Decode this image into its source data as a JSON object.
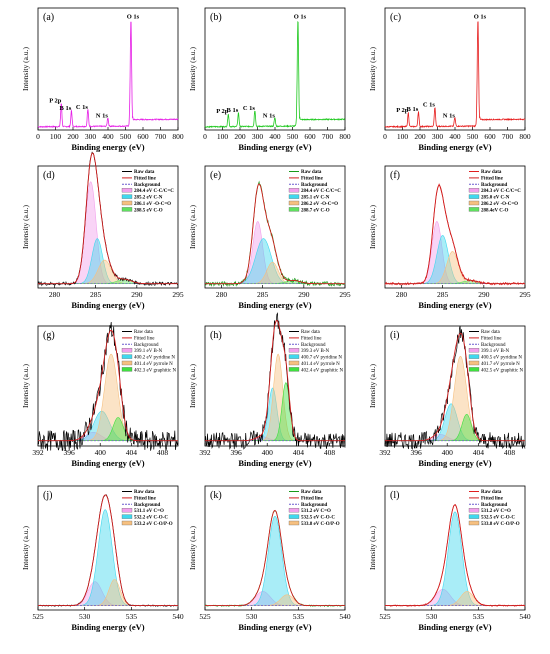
{
  "figure": {
    "xlabel": "Binding energy (eV)",
    "ylabel": "Intensity (a.u.)",
    "legend_raw": "Raw data",
    "legend_fit": "Fitted line",
    "legend_bg": "Background"
  },
  "chart_data": [
    {
      "id": "a",
      "type": "line",
      "label": "(a)",
      "color": "#e61ee6",
      "xlim": [
        0,
        800
      ],
      "xticks": [
        0,
        100,
        200,
        300,
        400,
        500,
        600,
        700,
        800
      ],
      "peaks": [
        {
          "label": "P 2p",
          "x": 133,
          "h": 0.22
        },
        {
          "label": "B 1s",
          "x": 191,
          "h": 0.15
        },
        {
          "label": "C 1s",
          "x": 285,
          "h": 0.16
        },
        {
          "label": "N 1s",
          "x": 399,
          "h": 0.08
        },
        {
          "label": "O 1s",
          "x": 531,
          "h": 1.0
        }
      ]
    },
    {
      "id": "b",
      "type": "line",
      "label": "(b)",
      "color": "#1ec81e",
      "xlim": [
        0,
        800
      ],
      "xticks": [
        0,
        100,
        200,
        300,
        400,
        500,
        600,
        700,
        800
      ],
      "peaks": [
        {
          "label": "P 2p",
          "x": 133,
          "h": 0.12
        },
        {
          "label": "B 1s",
          "x": 191,
          "h": 0.13
        },
        {
          "label": "C 1s",
          "x": 285,
          "h": 0.15
        },
        {
          "label": "N 1s",
          "x": 399,
          "h": 0.08
        },
        {
          "label": "O 1s",
          "x": 531,
          "h": 1.0
        }
      ]
    },
    {
      "id": "c",
      "type": "line",
      "label": "(c)",
      "color": "#e61e1e",
      "xlim": [
        0,
        800
      ],
      "xticks": [
        0,
        100,
        200,
        300,
        400,
        500,
        600,
        700,
        800
      ],
      "peaks": [
        {
          "label": "P 2p",
          "x": 133,
          "h": 0.13
        },
        {
          "label": "B 1s",
          "x": 191,
          "h": 0.14
        },
        {
          "label": "C 1s",
          "x": 285,
          "h": 0.18
        },
        {
          "label": "N 1s",
          "x": 399,
          "h": 0.08
        },
        {
          "label": "O 1s",
          "x": 531,
          "h": 1.0
        }
      ]
    },
    {
      "id": "d",
      "type": "line",
      "label": "(d)",
      "xlim": [
        278,
        295
      ],
      "xticks": [
        280,
        285,
        290,
        295
      ],
      "raw_color": "#000000",
      "noise": 0.015,
      "baseline": 0.04,
      "legend": [
        "Raw data",
        "Fitted line",
        "Background",
        "284.4 eV  C-C/C=C",
        "285.2 eV  C-N",
        "286.1 eV  -O-C=O",
        "288.5 eV  C-O"
      ],
      "components": [
        {
          "c": 284.4,
          "a": 0.95,
          "w": 0.65,
          "color": "#f2a0ec"
        },
        {
          "c": 285.2,
          "a": 0.42,
          "w": 0.65,
          "color": "#40d8ee"
        },
        {
          "c": 286.1,
          "a": 0.22,
          "w": 0.8,
          "color": "#f6c080"
        },
        {
          "c": 288.5,
          "a": 0.04,
          "w": 0.9,
          "color": "#60e060"
        }
      ]
    },
    {
      "id": "e",
      "type": "line",
      "label": "(e)",
      "xlim": [
        278,
        295
      ],
      "xticks": [
        280,
        285,
        290,
        295
      ],
      "raw_color": "#1a9a1a",
      "noise": 0.02,
      "baseline": 0.04,
      "legend": [
        "Raw data",
        "Fitted line",
        "Background",
        "284.4 eV  C-C/C=C",
        "285.1 eV  C-N",
        "286.2 eV  -O-C=O",
        "288.7 eV  C-O"
      ],
      "components": [
        {
          "c": 284.4,
          "a": 0.58,
          "w": 0.6,
          "color": "#f2a0ec"
        },
        {
          "c": 285.1,
          "a": 0.42,
          "w": 0.95,
          "color": "#40d8ee"
        },
        {
          "c": 286.2,
          "a": 0.2,
          "w": 0.7,
          "color": "#f6c080"
        },
        {
          "c": 288.7,
          "a": 0.03,
          "w": 0.9,
          "color": "#60e060"
        }
      ]
    },
    {
      "id": "f",
      "type": "line",
      "label": "(f)",
      "xlim": [
        278,
        295
      ],
      "xticks": [
        280,
        285,
        290,
        295
      ],
      "raw_color": "#e01e1e",
      "noise": 0.012,
      "baseline": 0.04,
      "legend": [
        "Raw data",
        "Fitted line",
        "Background",
        "284.3 eV  C-C/C=C",
        "285.0 eV  C-N",
        "286.2 eV  -O-C=O",
        "288.4eV   C-O"
      ],
      "components": [
        {
          "c": 284.3,
          "a": 0.58,
          "w": 0.6,
          "color": "#f2a0ec"
        },
        {
          "c": 285.0,
          "a": 0.45,
          "w": 0.7,
          "color": "#40d8ee"
        },
        {
          "c": 286.2,
          "a": 0.3,
          "w": 0.7,
          "color": "#f6c080"
        },
        {
          "c": 288.4,
          "a": 0.03,
          "w": 0.9,
          "color": "#60e060"
        }
      ]
    },
    {
      "id": "g",
      "type": "line",
      "label": "(g)",
      "xlim": [
        392,
        410
      ],
      "xticks": [
        392,
        396,
        400,
        404,
        408
      ],
      "raw_color": "#000000",
      "noise": 0.1,
      "baseline": 0.05,
      "legend": [
        "Raw data",
        "Fitted line",
        "Background",
        "399.1 eV B-N",
        "400.2 eV pyridine N",
        "401.4 eV pyrrole N",
        "402.3 eV graphitic N"
      ],
      "components": [
        {
          "c": 399.1,
          "a": 0.08,
          "w": 1.0,
          "color": "#f2a0ec"
        },
        {
          "c": 400.2,
          "a": 0.28,
          "w": 1.0,
          "color": "#40d8ee"
        },
        {
          "c": 401.4,
          "a": 0.82,
          "w": 0.85,
          "color": "#f6c080"
        },
        {
          "c": 402.3,
          "a": 0.22,
          "w": 0.65,
          "color": "#40e040"
        }
      ]
    },
    {
      "id": "h",
      "type": "line",
      "label": "(h)",
      "xlim": [
        392,
        410
      ],
      "xticks": [
        392,
        396,
        400,
        404,
        408
      ],
      "raw_color": "#000000",
      "noise": 0.08,
      "baseline": 0.05,
      "legend": [
        "Raw data",
        "Fitted line",
        "Background",
        "399.3 eV B-N",
        "400.7 eV pyridine N",
        "401.4 eV pyrrole N",
        "402.4 eV graphitic N"
      ],
      "components": [
        {
          "c": 399.3,
          "a": 0.04,
          "w": 0.8,
          "color": "#f2a0ec"
        },
        {
          "c": 400.7,
          "a": 0.5,
          "w": 0.55,
          "color": "#40d8ee"
        },
        {
          "c": 401.4,
          "a": 0.82,
          "w": 0.6,
          "color": "#f6c080"
        },
        {
          "c": 402.4,
          "a": 0.55,
          "w": 0.5,
          "color": "#40e040"
        }
      ]
    },
    {
      "id": "i",
      "type": "line",
      "label": "(i)",
      "xlim": [
        392,
        410
      ],
      "xticks": [
        392,
        396,
        400,
        404,
        408
      ],
      "raw_color": "#000000",
      "noise": 0.08,
      "baseline": 0.05,
      "legend": [
        "Raw data",
        "Fitted line",
        "Background",
        "399.1 eV B-N",
        "400.5 eV pyridine N",
        "401.7 eV pyrrole N",
        "402.5 eV graphitic N"
      ],
      "components": [
        {
          "c": 399.1,
          "a": 0.06,
          "w": 0.9,
          "color": "#f2a0ec"
        },
        {
          "c": 400.5,
          "a": 0.35,
          "w": 0.8,
          "color": "#40d8ee"
        },
        {
          "c": 401.7,
          "a": 0.8,
          "w": 0.8,
          "color": "#f6c080"
        },
        {
          "c": 402.5,
          "a": 0.25,
          "w": 0.6,
          "color": "#40e040"
        }
      ]
    },
    {
      "id": "j",
      "type": "line",
      "label": "(j)",
      "xlim": [
        525,
        540
      ],
      "xticks": [
        525,
        530,
        535,
        540
      ],
      "raw_color": "#000000",
      "noise": 0.006,
      "baseline": 0.04,
      "legend": [
        "Raw data",
        "Fitted line",
        "Background",
        "531.1 eV  C=O",
        "532.2 eV  C-O-C",
        "533.2 eV  C-O/P-O"
      ],
      "components": [
        {
          "c": 531.1,
          "a": 0.22,
          "w": 0.75,
          "color": "#f2a0ec"
        },
        {
          "c": 532.2,
          "a": 0.88,
          "w": 0.75,
          "color": "#40d8ee"
        },
        {
          "c": 533.2,
          "a": 0.24,
          "w": 0.6,
          "color": "#f6c080"
        }
      ]
    },
    {
      "id": "k",
      "type": "line",
      "label": "(k)",
      "xlim": [
        525,
        540
      ],
      "xticks": [
        525,
        530,
        535,
        540
      ],
      "raw_color": "#1a9a1a",
      "noise": 0.006,
      "baseline": 0.04,
      "legend": [
        "Raw data",
        "Fitted line",
        "Background",
        "531.2 eV  C=O",
        "532.5 eV  C-O-C",
        "533.8 eV  C-O/P-O"
      ],
      "components": [
        {
          "c": 531.2,
          "a": 0.13,
          "w": 0.8,
          "color": "#f2a0ec"
        },
        {
          "c": 532.5,
          "a": 0.82,
          "w": 0.72,
          "color": "#40d8ee"
        },
        {
          "c": 533.8,
          "a": 0.1,
          "w": 0.7,
          "color": "#f6c080"
        }
      ]
    },
    {
      "id": "l",
      "type": "line",
      "label": "(l)",
      "xlim": [
        525,
        540
      ],
      "xticks": [
        525,
        530,
        535,
        540
      ],
      "raw_color": "#e01e1e",
      "noise": 0.006,
      "baseline": 0.04,
      "legend": [
        "Raw data",
        "Fitted line",
        "Background",
        "531.2 eV  C=O",
        "532.5 eV  C-O-C",
        "533.8 eV  C-O/P-O"
      ],
      "components": [
        {
          "c": 531.2,
          "a": 0.15,
          "w": 0.8,
          "color": "#f2a0ec"
        },
        {
          "c": 532.5,
          "a": 0.86,
          "w": 0.72,
          "color": "#40d8ee"
        },
        {
          "c": 533.8,
          "a": 0.13,
          "w": 0.7,
          "color": "#f6c080"
        }
      ]
    }
  ]
}
